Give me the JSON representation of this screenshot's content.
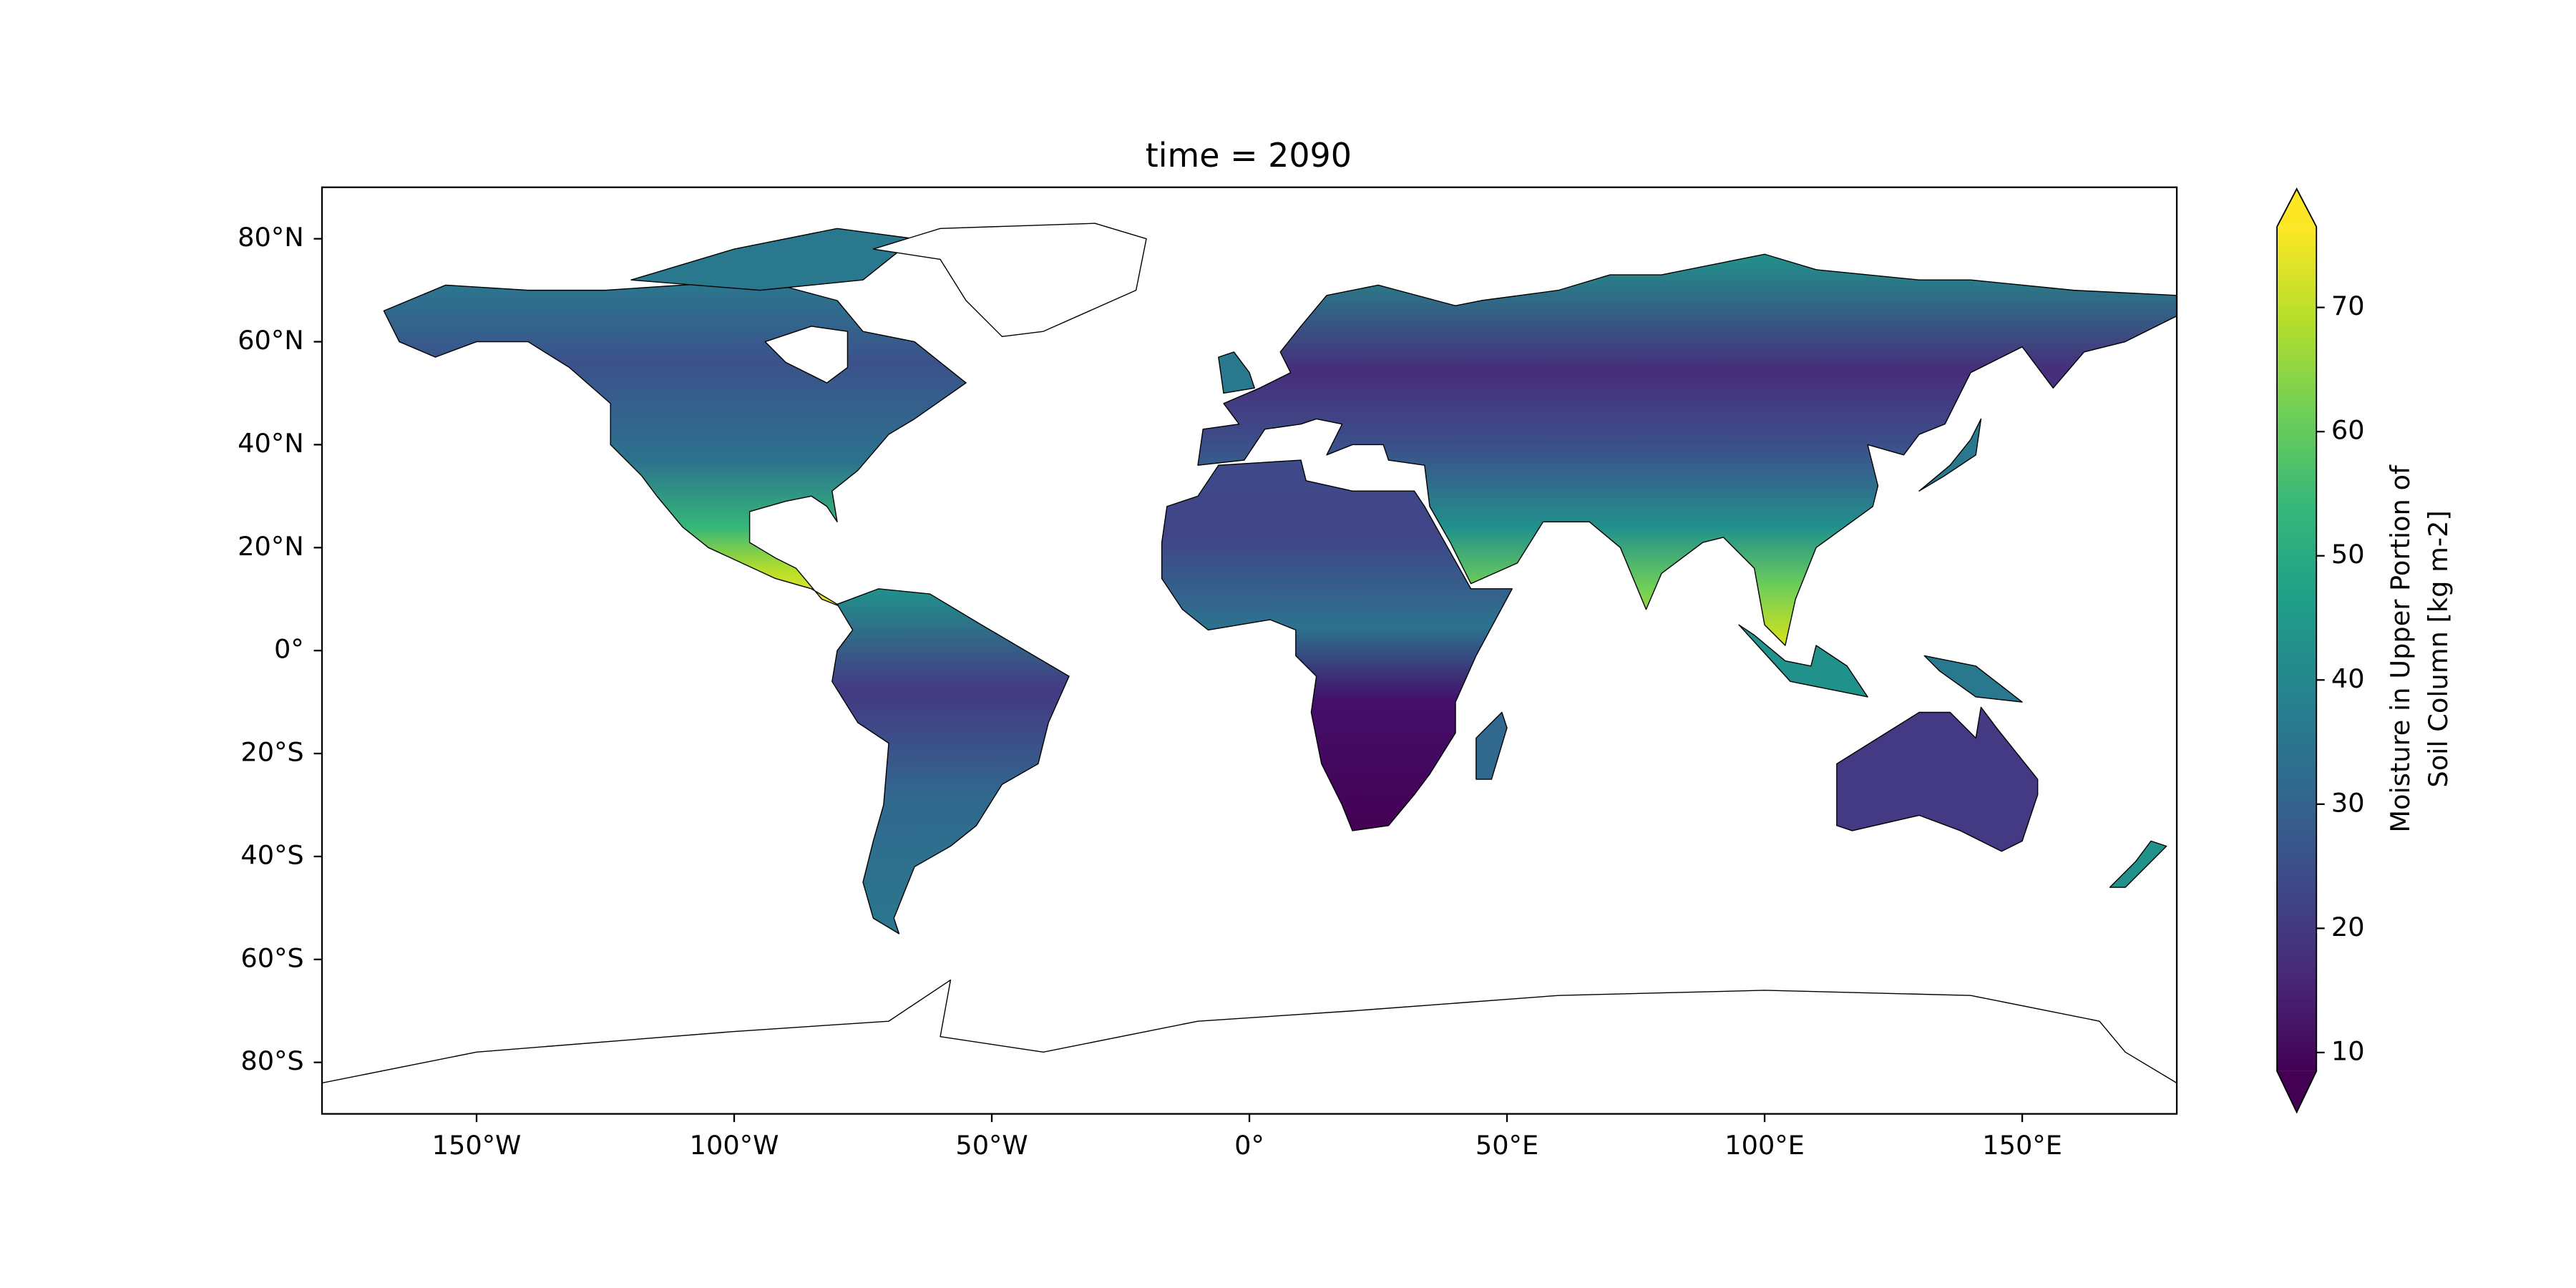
{
  "chart_data": {
    "type": "map",
    "title": "time = 2090",
    "xlim": [
      -180,
      180
    ],
    "ylim": [
      -90,
      90
    ],
    "xticks": [
      {
        "value": -150,
        "label": "150°W"
      },
      {
        "value": -100,
        "label": "100°W"
      },
      {
        "value": -50,
        "label": "50°W"
      },
      {
        "value": 0,
        "label": "0°"
      },
      {
        "value": 50,
        "label": "50°E"
      },
      {
        "value": 100,
        "label": "100°E"
      },
      {
        "value": 150,
        "label": "150°E"
      }
    ],
    "yticks": [
      {
        "value": -80,
        "label": "80°S"
      },
      {
        "value": -60,
        "label": "60°S"
      },
      {
        "value": -40,
        "label": "40°S"
      },
      {
        "value": -20,
        "label": "20°S"
      },
      {
        "value": 0,
        "label": "0°"
      },
      {
        "value": 20,
        "label": "20°N"
      },
      {
        "value": 40,
        "label": "40°N"
      },
      {
        "value": 60,
        "label": "60°N"
      },
      {
        "value": 80,
        "label": "80°N"
      }
    ],
    "colormap": "viridis",
    "colorbar_extend": "both",
    "clim": [
      8.5,
      76.5
    ],
    "colorbar_ticks": [
      10,
      20,
      30,
      40,
      50,
      60,
      70
    ],
    "colorbar_label": [
      "Moisture in Upper Portion of",
      "Soil Column [kg m-2]"
    ]
  }
}
